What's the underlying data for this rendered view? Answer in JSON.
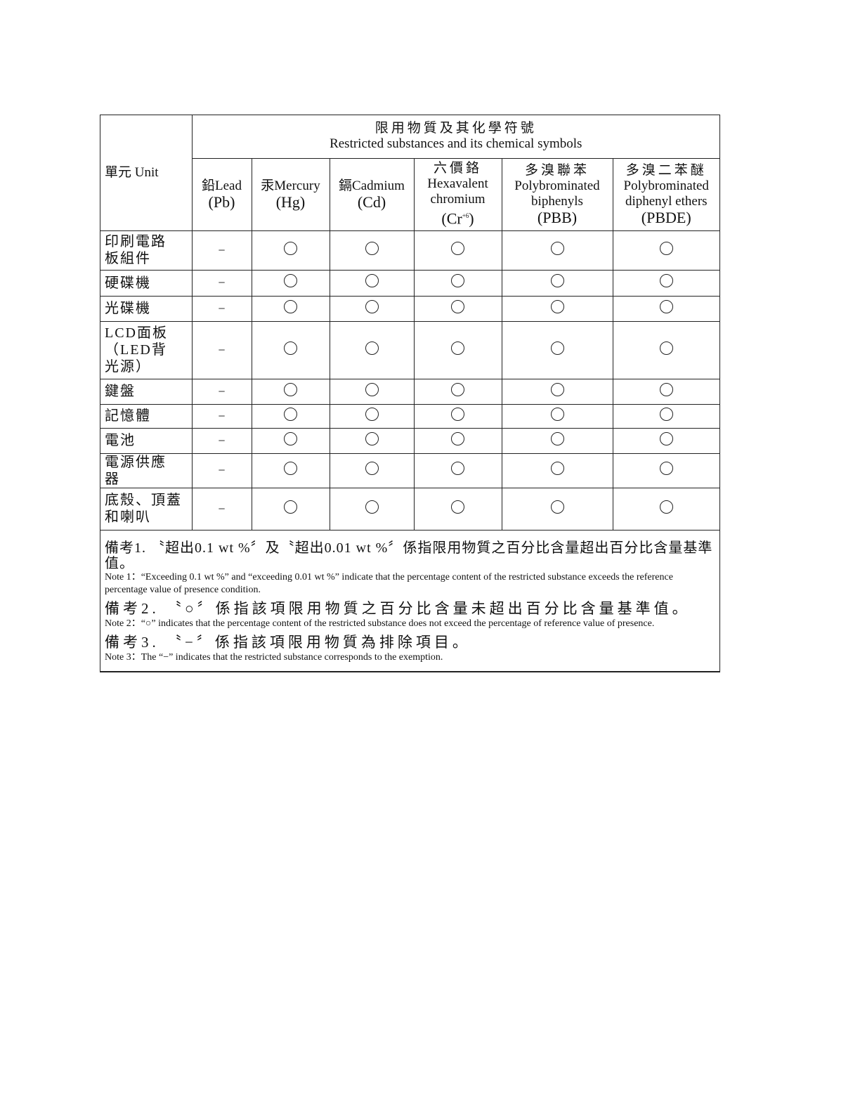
{
  "table": {
    "unit_header": "單元 Unit",
    "group_header_zh": "限用物質及其化學符號",
    "group_header_en": "Restricted substances and its chemical symbols",
    "columns": [
      {
        "zh": "",
        "name": "鉛Lead",
        "symbol": "(Pb)"
      },
      {
        "zh": "",
        "name": "汞Mercury",
        "symbol": "(Hg)"
      },
      {
        "zh": "",
        "name": "鎘Cadmium",
        "symbol": "(Cd)"
      },
      {
        "zh": "六價鉻",
        "name": "Hexavalent chromium",
        "symbol": "(Cr",
        "sup": "+6",
        "symbol_end": ")"
      },
      {
        "zh": "多溴聯苯",
        "name": "Polybrominated biphenyls",
        "symbol": "(PBB)"
      },
      {
        "zh": "多溴二苯醚",
        "name": "Polybrominated diphenyl ethers",
        "symbol": "(PBDE)"
      }
    ],
    "rows": [
      {
        "unit": "印刷電路板組件",
        "values": [
          "−",
          "○",
          "○",
          "○",
          "○",
          "○"
        ]
      },
      {
        "unit": "硬碟機",
        "values": [
          "−",
          "○",
          "○",
          "○",
          "○",
          "○"
        ]
      },
      {
        "unit": "光碟機",
        "values": [
          "−",
          "○",
          "○",
          "○",
          "○",
          "○"
        ]
      },
      {
        "unit": "LCD面板（LED背光源）",
        "values": [
          "−",
          "○",
          "○",
          "○",
          "○",
          "○"
        ]
      },
      {
        "unit": "鍵盤",
        "values": [
          "−",
          "○",
          "○",
          "○",
          "○",
          "○"
        ]
      },
      {
        "unit": "記憶體",
        "values": [
          "−",
          "○",
          "○",
          "○",
          "○",
          "○"
        ]
      },
      {
        "unit": "電池",
        "values": [
          "−",
          "○",
          "○",
          "○",
          "○",
          "○"
        ]
      },
      {
        "unit": "電源供應器",
        "values": [
          "−",
          "○",
          "○",
          "○",
          "○",
          "○"
        ]
      },
      {
        "unit": "底殼、頂蓋和喇叭",
        "values": [
          "−",
          "○",
          "○",
          "○",
          "○",
          "○"
        ]
      }
    ]
  },
  "notes": [
    {
      "zh": "備考1. 〝超出0.1 wt %〞及〝超出0.01 wt %〞係指限用物質之百分比含量超出百分比含量基準值。",
      "en": "Note 1：“Exceeding 0.1 wt %” and “exceeding 0.01 wt %” indicate that the percentage content of the restricted substance exceeds the reference percentage value of presence condition."
    },
    {
      "zh": "備考2. 〝○〞係指該項限用物質之百分比含量未超出百分比含量基準值。",
      "en": "Note 2：“○” indicates that the percentage content of the restricted substance does not exceed the percentage of reference value of presence."
    },
    {
      "zh": "備考3. 〝−〞係指該項限用物質為排除項目。",
      "en": "Note 3：The “−” indicates that the restricted substance corresponds to the exemption."
    }
  ]
}
